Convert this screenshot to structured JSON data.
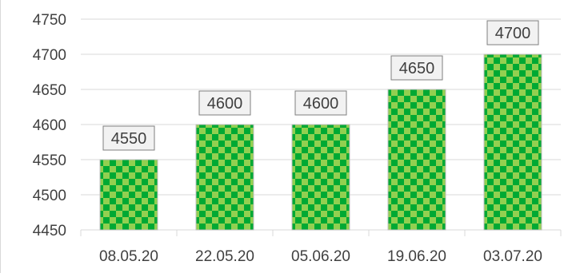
{
  "chart_data": {
    "type": "bar",
    "title": "",
    "xlabel": "",
    "ylabel": "",
    "categories": [
      "08.05.20",
      "22.05.20",
      "05.06.20",
      "19.06.20",
      "03.07.20"
    ],
    "values": [
      4550,
      4600,
      4600,
      4650,
      4700
    ],
    "data_labels": [
      "4550",
      "4600",
      "4600",
      "4650",
      "4700"
    ],
    "ylim": [
      4450,
      4750
    ],
    "yticks": [
      4450,
      4500,
      4550,
      4600,
      4650,
      4700,
      4750
    ],
    "ytick_labels": [
      "4450",
      "4500",
      "4550",
      "4600",
      "4650",
      "4700",
      "4750"
    ],
    "grid": true,
    "legend": "none",
    "colors": {
      "bar_fill_light": "#92d050",
      "bar_fill_dark": "#00a933",
      "bar_border": "#bfbfbf",
      "grid": "#d9d9d9",
      "label_box_fill": "#f2f2f2",
      "label_box_border": "#7f7f7f",
      "text": "#404040"
    },
    "bar_pattern": "checkerboard"
  }
}
